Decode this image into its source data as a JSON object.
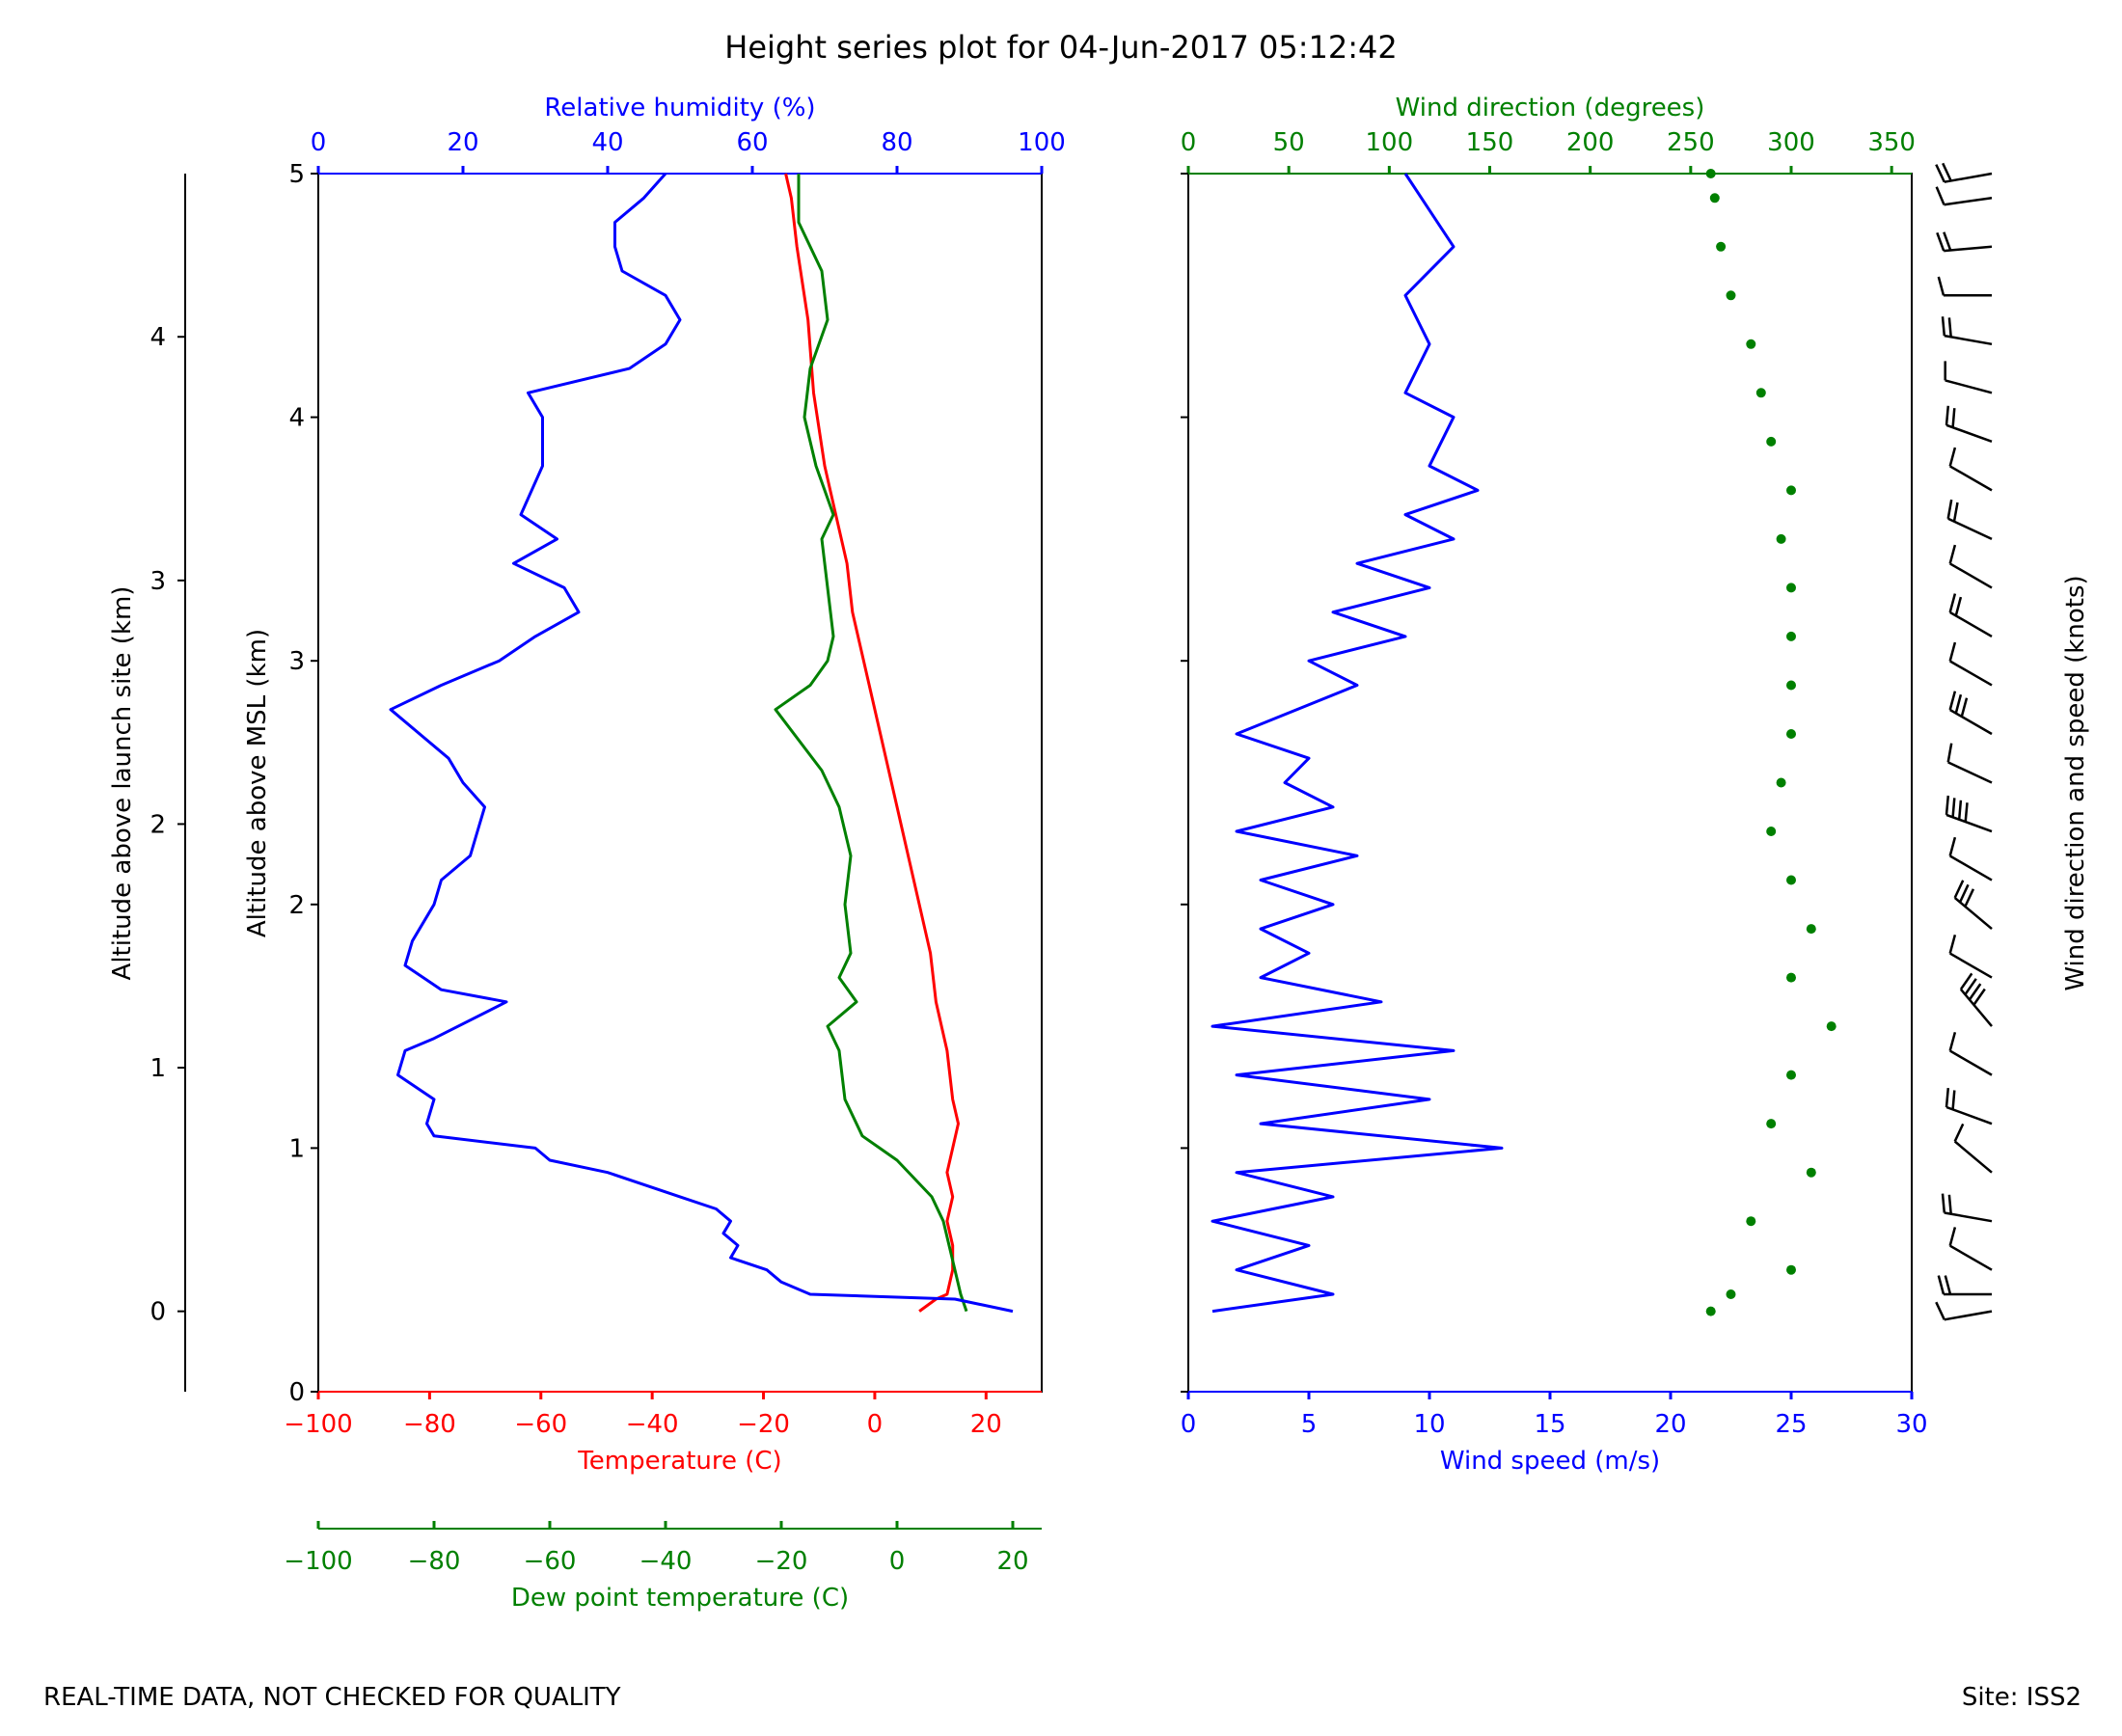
{
  "chart_data": [
    {
      "type": "line",
      "panel": "thermo",
      "title": "Height series plot for 04-Jun-2017 05:12:42",
      "series": [
        {
          "name": "Temperature (C)",
          "color": "#ff0000",
          "axis": "temperature",
          "points": [
            [
              8,
              0.33
            ],
            [
              11,
              0.38
            ],
            [
              13,
              0.4
            ],
            [
              14,
              0.5
            ],
            [
              14,
              0.6
            ],
            [
              13,
              0.7
            ],
            [
              14,
              0.8
            ],
            [
              13,
              0.9
            ],
            [
              14,
              1.0
            ],
            [
              15,
              1.1
            ],
            [
              14,
              1.2
            ],
            [
              13,
              1.4
            ],
            [
              11,
              1.6
            ],
            [
              10,
              1.8
            ],
            [
              8,
              2.0
            ],
            [
              5,
              2.3
            ],
            [
              2,
              2.6
            ],
            [
              -1,
              2.9
            ],
            [
              -4,
              3.2
            ],
            [
              -5,
              3.4
            ],
            [
              -7,
              3.6
            ],
            [
              -9,
              3.8
            ],
            [
              -11,
              4.1
            ],
            [
              -12,
              4.4
            ],
            [
              -14,
              4.7
            ],
            [
              -15,
              4.9
            ],
            [
              -16,
              5.0
            ]
          ]
        },
        {
          "name": "Dew point temperature (C)",
          "color": "#008000",
          "axis": "dewpoint",
          "points": [
            [
              12,
              0.33
            ],
            [
              11,
              0.4
            ],
            [
              10,
              0.5
            ],
            [
              8,
              0.7
            ],
            [
              6,
              0.8
            ],
            [
              0,
              0.95
            ],
            [
              -3,
              1.0
            ],
            [
              -6,
              1.05
            ],
            [
              -9,
              1.2
            ],
            [
              -10,
              1.4
            ],
            [
              -12,
              1.5
            ],
            [
              -7,
              1.6
            ],
            [
              -10,
              1.7
            ],
            [
              -8,
              1.8
            ],
            [
              -9,
              2.0
            ],
            [
              -8,
              2.2
            ],
            [
              -10,
              2.4
            ],
            [
              -13,
              2.55
            ],
            [
              -21,
              2.8
            ],
            [
              -15,
              2.9
            ],
            [
              -12,
              3.0
            ],
            [
              -11,
              3.1
            ],
            [
              -12,
              3.3
            ],
            [
              -13,
              3.5
            ],
            [
              -11,
              3.6
            ],
            [
              -14,
              3.8
            ],
            [
              -16,
              4.0
            ],
            [
              -15,
              4.2
            ],
            [
              -12,
              4.4
            ],
            [
              -13,
              4.6
            ],
            [
              -17,
              4.8
            ],
            [
              -17,
              5.0
            ]
          ]
        },
        {
          "name": "Relative humidity (%)",
          "color": "#0000ff",
          "axis": "rh",
          "points": [
            [
              96,
              0.33
            ],
            [
              88,
              0.38
            ],
            [
              68,
              0.4
            ],
            [
              64,
              0.45
            ],
            [
              62,
              0.5
            ],
            [
              57,
              0.55
            ],
            [
              58,
              0.6
            ],
            [
              56,
              0.65
            ],
            [
              57,
              0.7
            ],
            [
              55,
              0.75
            ],
            [
              50,
              0.8
            ],
            [
              40,
              0.9
            ],
            [
              32,
              0.95
            ],
            [
              30,
              1.0
            ],
            [
              16,
              1.05
            ],
            [
              15,
              1.1
            ],
            [
              16,
              1.2
            ],
            [
              11,
              1.3
            ],
            [
              12,
              1.4
            ],
            [
              16,
              1.45
            ],
            [
              26,
              1.6
            ],
            [
              17,
              1.65
            ],
            [
              12,
              1.75
            ],
            [
              13,
              1.85
            ],
            [
              16,
              2.0
            ],
            [
              17,
              2.1
            ],
            [
              21,
              2.2
            ],
            [
              22,
              2.3
            ],
            [
              23,
              2.4
            ],
            [
              20,
              2.5
            ],
            [
              18,
              2.6
            ],
            [
              10,
              2.8
            ],
            [
              17,
              2.9
            ],
            [
              25,
              3.0
            ],
            [
              30,
              3.1
            ],
            [
              36,
              3.2
            ],
            [
              34,
              3.3
            ],
            [
              27,
              3.4
            ],
            [
              33,
              3.5
            ],
            [
              28,
              3.6
            ],
            [
              31,
              3.8
            ],
            [
              31,
              4.0
            ],
            [
              29,
              4.1
            ],
            [
              43,
              4.2
            ],
            [
              48,
              4.3
            ],
            [
              50,
              4.4
            ],
            [
              48,
              4.5
            ],
            [
              42,
              4.6
            ],
            [
              41,
              4.7
            ],
            [
              41,
              4.8
            ],
            [
              45,
              4.9
            ],
            [
              48,
              5.0
            ]
          ]
        }
      ],
      "y_axis": {
        "label": "Altitude above MSL (km)",
        "range": [
          0,
          5
        ],
        "ticks": [
          "0",
          "1",
          "2",
          "3",
          "4",
          "5"
        ]
      },
      "y2_axis": {
        "label": "Altitude above launch site (km)",
        "ticks": [
          "0",
          "1",
          "2",
          "3",
          "4"
        ]
      },
      "x_axes": {
        "temperature": {
          "label": "Temperature (C)",
          "range": [
            -100,
            30
          ],
          "ticks": [
            "−100",
            "−80",
            "−60",
            "−40",
            "−20",
            "0",
            "20"
          ]
        },
        "dewpoint": {
          "label": "Dew point temperature (C)",
          "range": [
            -100,
            25
          ],
          "ticks": [
            "−100",
            "−80",
            "−60",
            "−40",
            "−20",
            "0",
            "20"
          ]
        },
        "rh": {
          "label": "Relative humidity (%)",
          "range": [
            0,
            100
          ],
          "ticks": [
            "0",
            "20",
            "40",
            "60",
            "80",
            "100"
          ]
        }
      }
    },
    {
      "type": "line+scatter",
      "panel": "wind",
      "series": [
        {
          "name": "Wind speed (m/s)",
          "color": "#0000ff",
          "style": "line",
          "points": [
            [
              1,
              0.33
            ],
            [
              6,
              0.4
            ],
            [
              2,
              0.5
            ],
            [
              5,
              0.6
            ],
            [
              1,
              0.7
            ],
            [
              6,
              0.8
            ],
            [
              2,
              0.9
            ],
            [
              13,
              1.0
            ],
            [
              3,
              1.1
            ],
            [
              10,
              1.2
            ],
            [
              2,
              1.3
            ],
            [
              11,
              1.4
            ],
            [
              1,
              1.5
            ],
            [
              8,
              1.6
            ],
            [
              3,
              1.7
            ],
            [
              5,
              1.8
            ],
            [
              3,
              1.9
            ],
            [
              6,
              2.0
            ],
            [
              3,
              2.1
            ],
            [
              7,
              2.2
            ],
            [
              2,
              2.3
            ],
            [
              6,
              2.4
            ],
            [
              4,
              2.5
            ],
            [
              5,
              2.6
            ],
            [
              2,
              2.7
            ],
            [
              7,
              2.9
            ],
            [
              5,
              3.0
            ],
            [
              9,
              3.1
            ],
            [
              6,
              3.2
            ],
            [
              10,
              3.3
            ],
            [
              7,
              3.4
            ],
            [
              11,
              3.5
            ],
            [
              9,
              3.6
            ],
            [
              12,
              3.7
            ],
            [
              10,
              3.8
            ],
            [
              11,
              4.0
            ],
            [
              9,
              4.1
            ],
            [
              10,
              4.3
            ],
            [
              9,
              4.5
            ],
            [
              11,
              4.7
            ],
            [
              10,
              4.85
            ],
            [
              9,
              5.0
            ]
          ]
        },
        {
          "name": "Wind direction (degrees)",
          "color": "#008000",
          "style": "dots",
          "points": [
            [
              260,
              0.33
            ],
            [
              270,
              0.4
            ],
            [
              300,
              0.5
            ],
            [
              280,
              0.7
            ],
            [
              310,
              0.9
            ],
            [
              290,
              1.1
            ],
            [
              300,
              1.3
            ],
            [
              320,
              1.5
            ],
            [
              300,
              1.7
            ],
            [
              310,
              1.9
            ],
            [
              300,
              2.1
            ],
            [
              290,
              2.3
            ],
            [
              295,
              2.5
            ],
            [
              300,
              2.7
            ],
            [
              300,
              2.9
            ],
            [
              300,
              3.1
            ],
            [
              300,
              3.3
            ],
            [
              295,
              3.5
            ],
            [
              300,
              3.7
            ],
            [
              290,
              3.9
            ],
            [
              285,
              4.1
            ],
            [
              280,
              4.3
            ],
            [
              270,
              4.5
            ],
            [
              265,
              4.7
            ],
            [
              262,
              4.9
            ],
            [
              260,
              5.0
            ]
          ]
        }
      ],
      "x_axes": {
        "speed": {
          "label": "Wind speed (m/s)",
          "range": [
            0,
            30
          ],
          "ticks": [
            "0",
            "5",
            "10",
            "15",
            "20",
            "25",
            "30"
          ]
        },
        "direction": {
          "label": "Wind direction (degrees)",
          "range": [
            0,
            360
          ],
          "ticks": [
            "0",
            "50",
            "100",
            "150",
            "200",
            "250",
            "300",
            "350"
          ]
        }
      },
      "barbs_label": "Wind direction and speed (knots)"
    }
  ],
  "footer": {
    "left": "REAL-TIME DATA, NOT CHECKED FOR QUALITY",
    "right": "Site: ISS2"
  }
}
